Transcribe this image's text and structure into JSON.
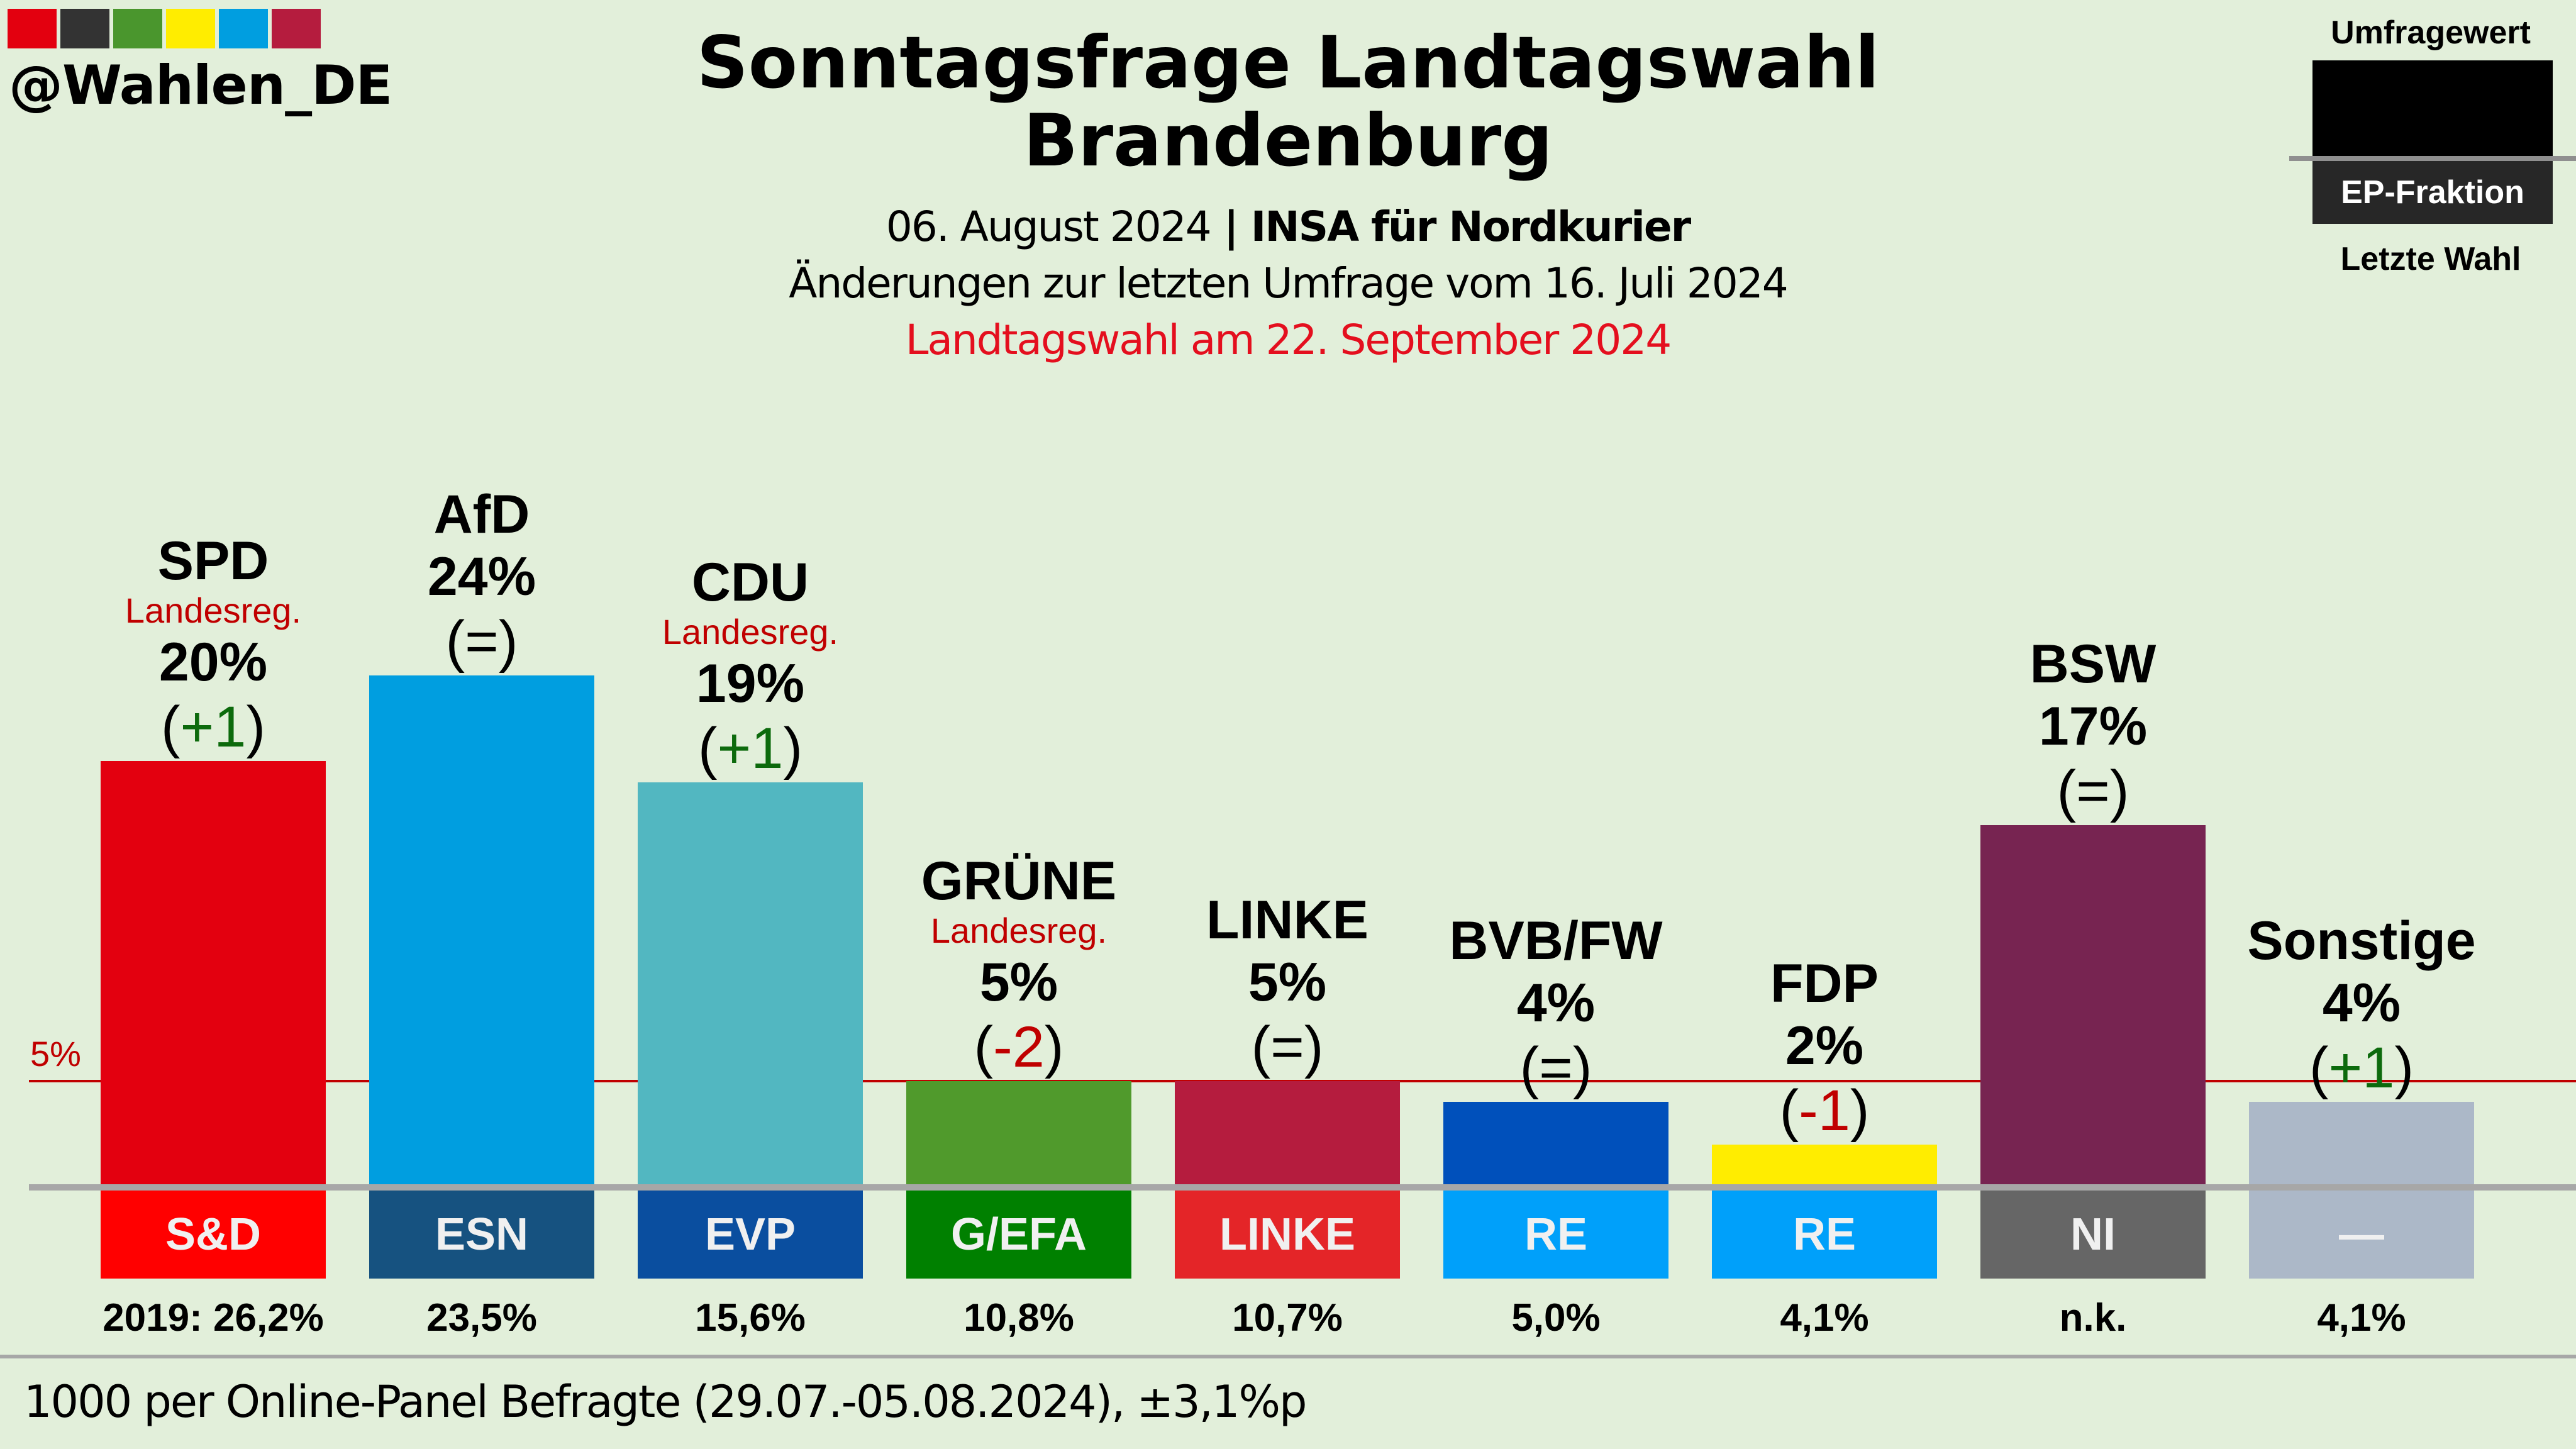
{
  "branding": {
    "handle": "@Wahlen_DE",
    "swatch_colors": [
      "#e3000f",
      "#333333",
      "#4a962d",
      "#ffed00",
      "#009ee0",
      "#b51c3e"
    ]
  },
  "header": {
    "title_line1": "Sonntagsfrage Landtagswahl",
    "title_line2": "Brandenburg",
    "date": "06. August 2024",
    "separator": " | ",
    "institute": "INSA für Nordkurier",
    "changes_note": "Änderungen zur letzten Umfrage vom 16. Juli 2024",
    "election_note": "Landtagswahl am 22. September 2024"
  },
  "legend": {
    "top": "Umfragewert",
    "box": "EP-Fraktion",
    "bottom": "Letzte Wahl"
  },
  "footer": {
    "text": "1000 per Online-Panel Befragte (29.07.-05.08.2024), ±3,1%p"
  },
  "chart_data": {
    "type": "bar",
    "title": "Sonntagsfrage Landtagswahl Brandenburg",
    "ylabel": "",
    "xlabel": "",
    "ylim": [
      0,
      25
    ],
    "threshold": {
      "value": 5,
      "label": "5%"
    },
    "categories": [
      "SPD",
      "AfD",
      "CDU",
      "GRÜNE",
      "LINKE",
      "BVB/FW",
      "FDP",
      "BSW",
      "Sonstige"
    ],
    "values": [
      20,
      24,
      19,
      5,
      5,
      4,
      2,
      17,
      4
    ],
    "value_labels": [
      "20%",
      "24%",
      "19%",
      "5%",
      "5%",
      "4%",
      "2%",
      "17%",
      "4%"
    ],
    "changes": [
      "+1",
      "=",
      "+1",
      "-2",
      "=",
      "=",
      "-1",
      "=",
      "+1"
    ],
    "government": [
      true,
      false,
      true,
      true,
      false,
      false,
      false,
      false,
      false
    ],
    "government_label": "Landesreg.",
    "bar_colors": [
      "#e3000f",
      "#009ee0",
      "#52b7c1",
      "#509a2c",
      "#b51c3e",
      "#0050bb",
      "#ffed00",
      "#772451",
      "#acb8c8"
    ],
    "ep_groups": [
      "S&D",
      "ESN",
      "EVP",
      "G/EFA",
      "LINKE",
      "RE",
      "RE",
      "NI",
      "—"
    ],
    "ep_colors": [
      "#ff0000",
      "#165280",
      "#0a4e9f",
      "#008000",
      "#e42528",
      "#00a0fa",
      "#00a0fa",
      "#666666",
      "#acb8c8"
    ],
    "last_election": [
      "2019: 26,2%",
      "23,5%",
      "15,6%",
      "10,8%",
      "10,7%",
      "5,0%",
      "4,1%",
      "n.k.",
      "4,1%"
    ],
    "change_colors": {
      "positive": "#0c6a0c",
      "negative": "#c00000",
      "neutral": "#000000"
    }
  }
}
